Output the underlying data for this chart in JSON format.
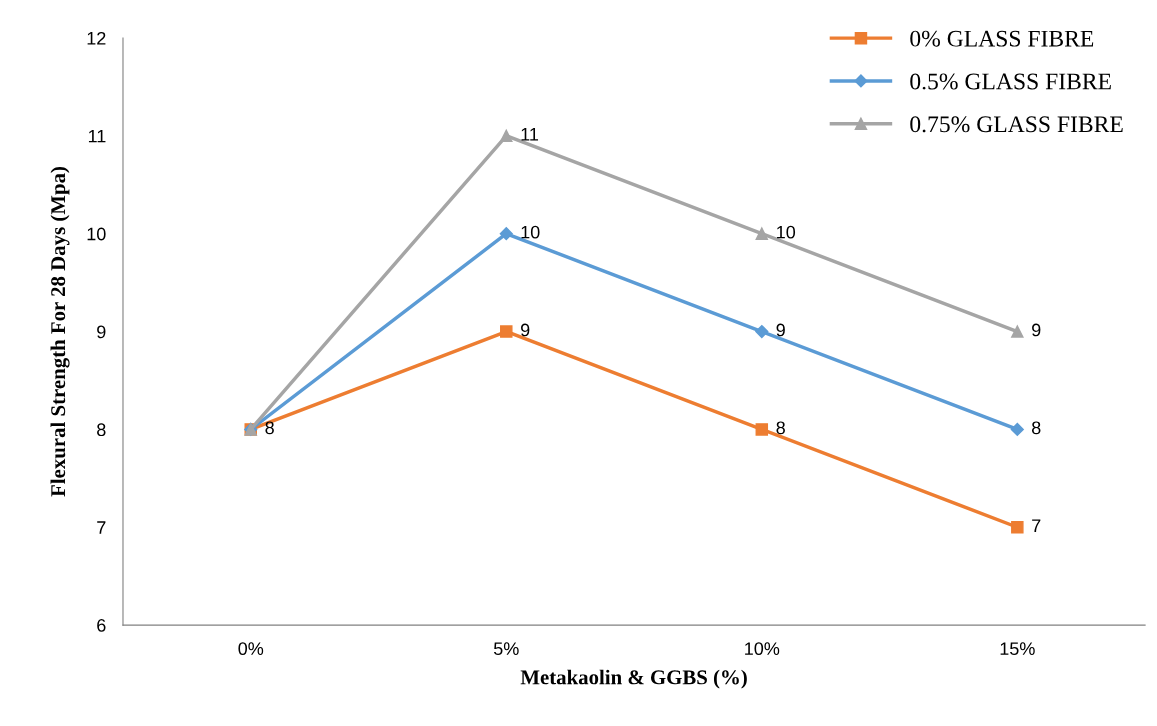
{
  "chart_data": {
    "type": "line",
    "xlabel": "Metakaolin & GGBS (%)",
    "ylabel": "Flexural Strength For 28 Days (Mpa)",
    "categories": [
      "0%",
      "5%",
      "10%",
      "15%"
    ],
    "series": [
      {
        "name": "0% GLASS FIBRE",
        "color": "#ed7d31",
        "marker": "square",
        "values": [
          8,
          9,
          8,
          7
        ],
        "value_labels": [
          null,
          "9",
          "8",
          "7"
        ]
      },
      {
        "name": "0.5% GLASS FIBRE",
        "color": "#5b9bd5",
        "marker": "diamond",
        "values": [
          8,
          10,
          9,
          8
        ]
      },
      {
        "name": "0.75% GLASS FIBRE",
        "color": "#a5a5a5",
        "marker": "triangle",
        "values": [
          8,
          11,
          10,
          9
        ],
        "value_labels": [
          null,
          "11",
          "10",
          "9"
        ]
      }
    ],
    "ylim": [
      6,
      12
    ],
    "yticks": [
      6,
      7,
      8,
      9,
      10,
      11,
      12
    ],
    "grid": false,
    "legend": "top right",
    "data_labels": true
  }
}
